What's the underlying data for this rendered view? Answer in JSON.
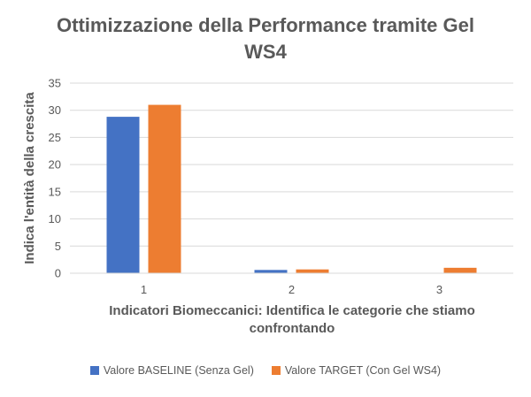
{
  "chart_data": {
    "type": "bar",
    "title_lines": [
      "Ottimizzazione della Performance tramite Gel",
      "WS4"
    ],
    "xlabel_lines": [
      "Indicatori Biomeccanici: Identifica le categorie che stiamo",
      "confrontando"
    ],
    "ylabel": "Indica l'entità della crescita",
    "categories": [
      "1",
      "2",
      "3"
    ],
    "series": [
      {
        "name": "Valore BASELINE (Senza Gel)",
        "color": "#4472C4",
        "values": [
          28.8,
          0.6,
          0
        ]
      },
      {
        "name": "Valore TARGET (Con Gel WS4)",
        "color": "#ED7D31",
        "values": [
          31.0,
          0.7,
          1.0
        ]
      }
    ],
    "ylim": [
      0,
      35
    ],
    "yticks": [
      0,
      5,
      10,
      15,
      20,
      25,
      30,
      35
    ],
    "grid": true,
    "legend_position": "bottom"
  }
}
